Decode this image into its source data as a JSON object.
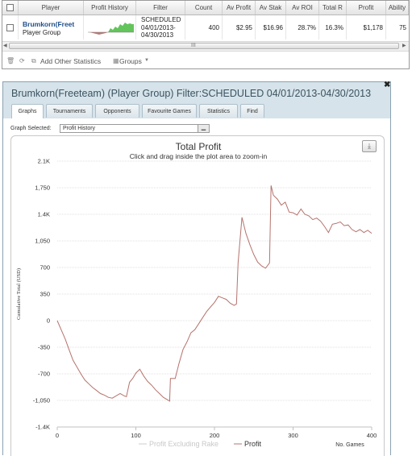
{
  "grid": {
    "columns": [
      "Player",
      "Profit History",
      "Filter",
      "Count",
      "Av Profit",
      "Av Stak",
      "Av ROI",
      "Total R",
      "Profit",
      "Ability"
    ],
    "row": {
      "player_name": "Brumkorn(Freet",
      "player_group": "Player Group",
      "filter_line1": "SCHEDULED",
      "filter_line2": "04/01/2013-",
      "filter_line3": "04/30/2013",
      "count": "400",
      "av_profit": "$2.95",
      "av_stake": "$16.96",
      "av_roi": "28.7%",
      "total_roi": "16.3%",
      "profit": "$1,178",
      "ability": "75"
    },
    "scroll_glyph": "III"
  },
  "toolbar": {
    "add_stats_label": "Add Other Statistics",
    "groups_label": "Groups"
  },
  "window": {
    "title": "Brumkorn(Freeteam) (Player Group) Filter:SCHEDULED 04/01/2013-04/30/2013",
    "close_glyph": "✖"
  },
  "tabs": [
    "Graphs",
    "Tournaments",
    "Opponents",
    "Favourite Games",
    "Statistics",
    "Find"
  ],
  "active_tab": "Graphs",
  "graph_select": {
    "label": "Graph Selected:",
    "value": "Profit History"
  },
  "chart_data": {
    "type": "line",
    "title": "Total Profit",
    "subtitle": "Click and drag inside the plot area to zoom-in",
    "ylabel": "Cumulative Total (USD)",
    "xlabel": "No. Games",
    "xlim": [
      0,
      400
    ],
    "ylim": [
      -1400,
      2100
    ],
    "x_ticks": [
      "0",
      "100",
      "200",
      "300",
      "400"
    ],
    "y_ticks": [
      "2.1K",
      "1,750",
      "1.4K",
      "1,050",
      "700",
      "350",
      "0",
      "-350",
      "-700",
      "-1,050",
      "-1.4K"
    ],
    "legend": [
      {
        "name": "Profit Excluding Rake",
        "color": "#cccccc"
      },
      {
        "name": "Profit",
        "color": "#b5736d"
      }
    ],
    "series": [
      {
        "name": "Profit",
        "color": "#b5736d",
        "x": [
          0,
          5,
          10,
          15,
          20,
          25,
          30,
          35,
          40,
          45,
          50,
          55,
          60,
          65,
          70,
          75,
          80,
          85,
          88,
          92,
          96,
          100,
          105,
          110,
          115,
          120,
          125,
          130,
          135,
          140,
          143,
          144,
          150,
          155,
          160,
          165,
          170,
          175,
          180,
          185,
          190,
          195,
          200,
          205,
          210,
          215,
          220,
          225,
          228,
          230,
          235,
          240,
          245,
          250,
          255,
          260,
          265,
          270,
          272,
          275,
          280,
          285,
          290,
          295,
          300,
          305,
          310,
          315,
          320,
          325,
          330,
          335,
          340,
          345,
          350,
          355,
          360,
          365,
          370,
          375,
          380,
          385,
          390,
          395,
          400
        ],
        "y": [
          0,
          -120,
          -240,
          -380,
          -520,
          -610,
          -700,
          -780,
          -830,
          -880,
          -920,
          -960,
          -980,
          -1010,
          -1020,
          -990,
          -960,
          -990,
          -1000,
          -810,
          -760,
          -690,
          -640,
          -730,
          -800,
          -850,
          -910,
          -960,
          -1010,
          -1040,
          -1060,
          -760,
          -760,
          -560,
          -380,
          -280,
          -160,
          -120,
          -40,
          40,
          120,
          180,
          240,
          320,
          300,
          280,
          230,
          200,
          220,
          760,
          1360,
          1150,
          1000,
          870,
          770,
          720,
          690,
          760,
          1780,
          1650,
          1600,
          1520,
          1560,
          1430,
          1420,
          1390,
          1470,
          1400,
          1380,
          1330,
          1350,
          1310,
          1240,
          1160,
          1270,
          1280,
          1300,
          1250,
          1260,
          1200,
          1170,
          1200,
          1160,
          1190,
          1150
        ]
      }
    ]
  }
}
